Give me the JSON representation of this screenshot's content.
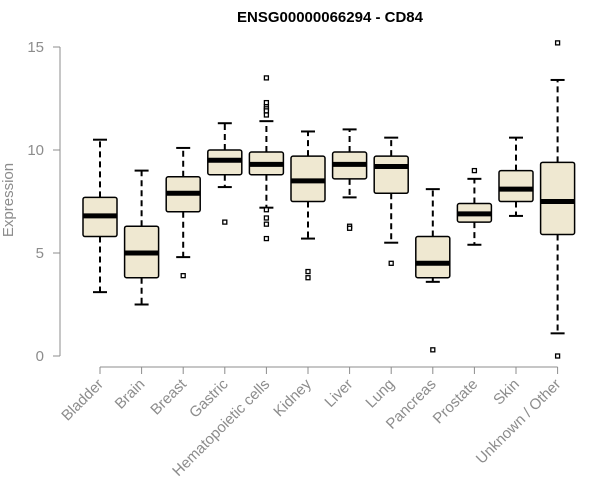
{
  "chart_data": {
    "type": "boxplot",
    "title": "ENSG00000066294 - CD84",
    "xlabel": "",
    "ylabel": "Expression",
    "ylim": [
      0,
      15
    ],
    "yticks": [
      0,
      5,
      10,
      15
    ],
    "categories": [
      "Bladder",
      "Brain",
      "Breast",
      "Gastric",
      "Hematopoietic cells",
      "Kidney",
      "Liver",
      "Lung",
      "Pancreas",
      "Prostate",
      "Skin",
      "Unknown / Other"
    ],
    "boxes": [
      {
        "category": "Bladder",
        "whisker_low": 3.1,
        "q1": 5.8,
        "median": 6.8,
        "q3": 7.7,
        "whisker_high": 10.5,
        "outliers": []
      },
      {
        "category": "Brain",
        "whisker_low": 2.5,
        "q1": 3.8,
        "median": 5.0,
        "q3": 6.3,
        "whisker_high": 9.0,
        "outliers": []
      },
      {
        "category": "Breast",
        "whisker_low": 4.8,
        "q1": 7.0,
        "median": 7.9,
        "q3": 8.7,
        "whisker_high": 10.1,
        "outliers": [
          3.9
        ]
      },
      {
        "category": "Gastric",
        "whisker_low": 8.2,
        "q1": 8.8,
        "median": 9.5,
        "q3": 10.0,
        "whisker_high": 11.3,
        "outliers": [
          6.5
        ]
      },
      {
        "category": "Hematopoietic cells",
        "whisker_low": 7.2,
        "q1": 8.8,
        "median": 9.3,
        "q3": 9.9,
        "whisker_high": 11.4,
        "outliers": [
          13.5,
          12.3,
          12.1,
          12.0,
          11.9,
          11.7,
          7.1,
          6.7,
          6.4,
          5.7
        ]
      },
      {
        "category": "Kidney",
        "whisker_low": 5.7,
        "q1": 7.5,
        "median": 8.5,
        "q3": 9.7,
        "whisker_high": 10.9,
        "outliers": [
          4.1,
          3.8
        ]
      },
      {
        "category": "Liver",
        "whisker_low": 7.7,
        "q1": 8.6,
        "median": 9.3,
        "q3": 9.9,
        "whisker_high": 11.0,
        "outliers": [
          6.3,
          6.2
        ]
      },
      {
        "category": "Lung",
        "whisker_low": 5.5,
        "q1": 7.9,
        "median": 9.2,
        "q3": 9.7,
        "whisker_high": 10.6,
        "outliers": [
          4.5
        ]
      },
      {
        "category": "Pancreas",
        "whisker_low": 3.6,
        "q1": 3.8,
        "median": 4.5,
        "q3": 5.8,
        "whisker_high": 8.1,
        "outliers": [
          0.3
        ]
      },
      {
        "category": "Prostate",
        "whisker_low": 5.4,
        "q1": 6.5,
        "median": 6.9,
        "q3": 7.4,
        "whisker_high": 8.6,
        "outliers": [
          9.0
        ]
      },
      {
        "category": "Skin",
        "whisker_low": 6.8,
        "q1": 7.5,
        "median": 8.1,
        "q3": 9.0,
        "whisker_high": 10.6,
        "outliers": []
      },
      {
        "category": "Unknown / Other",
        "whisker_low": 1.1,
        "q1": 5.9,
        "median": 7.5,
        "q3": 9.4,
        "whisker_high": 13.4,
        "outliers": [
          15.2,
          0.0
        ]
      }
    ],
    "colors": {
      "box_fill": "#efe8d1",
      "box_stroke": "#000000",
      "median": "#000000",
      "axis": "#8c8c8c",
      "title": "#000000"
    },
    "grid": false,
    "legend": "none"
  }
}
